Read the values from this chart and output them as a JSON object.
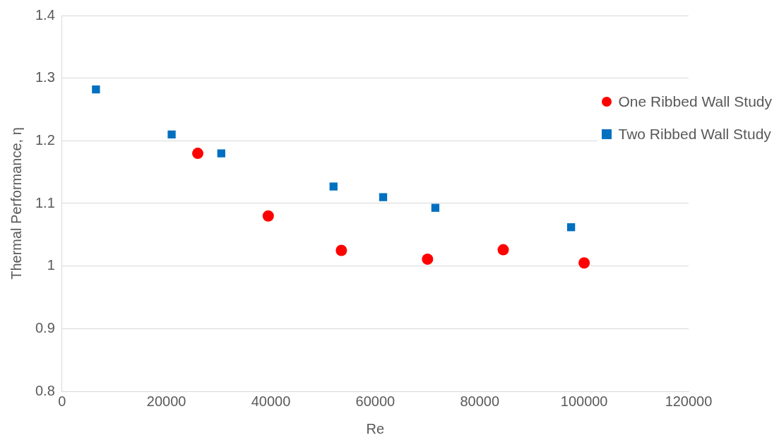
{
  "chart_data": {
    "type": "scatter",
    "xlabel": "Re",
    "ylabel": "Thermal Performance, η",
    "series": [
      {
        "name": "One Ribbed Wall Study",
        "color": "#ff0000",
        "marker": "circle",
        "x": [
          26000,
          39500,
          53500,
          70000,
          84500,
          100000
        ],
        "values": [
          1.18,
          1.08,
          1.025,
          1.011,
          1.026,
          1.005
        ]
      },
      {
        "name": "Two Ribbed Wall Study",
        "color": "#0070c0",
        "marker": "square",
        "x": [
          6500,
          21000,
          30500,
          52000,
          61500,
          71500,
          97500
        ],
        "values": [
          1.282,
          1.21,
          1.18,
          1.127,
          1.11,
          1.093,
          1.062
        ]
      }
    ],
    "xlim": [
      0,
      120000
    ],
    "xticks": [
      0,
      20000,
      40000,
      60000,
      80000,
      100000,
      120000
    ],
    "ylim": [
      0.8,
      1.4
    ],
    "yticks": [
      0.8,
      0.9,
      1,
      1.1,
      1.2,
      1.3,
      1.4
    ],
    "grid": "y",
    "legend": "right"
  }
}
